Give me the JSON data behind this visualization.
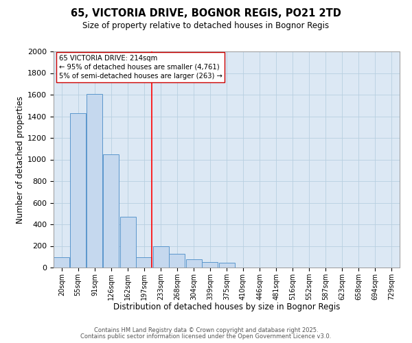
{
  "title": "65, VICTORIA DRIVE, BOGNOR REGIS, PO21 2TD",
  "subtitle": "Size of property relative to detached houses in Bognor Regis",
  "xlabel": "Distribution of detached houses by size in Bognor Regis",
  "ylabel": "Number of detached properties",
  "bar_color": "#c5d8ee",
  "bar_edge_color": "#5a96cc",
  "background_color": "#dce8f4",
  "grid_color": "#b8cfe0",
  "categories": [
    "20sqm",
    "55sqm",
    "91sqm",
    "126sqm",
    "162sqm",
    "197sqm",
    "233sqm",
    "268sqm",
    "304sqm",
    "339sqm",
    "375sqm",
    "410sqm",
    "446sqm",
    "481sqm",
    "516sqm",
    "552sqm",
    "587sqm",
    "623sqm",
    "658sqm",
    "694sqm",
    "729sqm"
  ],
  "bin_centers": [
    20,
    55,
    91,
    126,
    162,
    197,
    233,
    268,
    304,
    339,
    375,
    410,
    446,
    481,
    516,
    552,
    587,
    623,
    658,
    694,
    729
  ],
  "bin_width": 35,
  "values": [
    95,
    1430,
    1605,
    1050,
    470,
    95,
    195,
    125,
    75,
    50,
    45,
    0,
    0,
    0,
    0,
    0,
    0,
    0,
    0,
    0,
    0
  ],
  "ylim": [
    0,
    2000
  ],
  "yticks": [
    0,
    200,
    400,
    600,
    800,
    1000,
    1200,
    1400,
    1600,
    1800,
    2000
  ],
  "red_line_x": 214,
  "annotation_text": "65 VICTORIA DRIVE: 214sqm\n← 95% of detached houses are smaller (4,761)\n5% of semi-detached houses are larger (263) →",
  "footer_line1": "Contains HM Land Registry data © Crown copyright and database right 2025.",
  "footer_line2": "Contains public sector information licensed under the Open Government Licence v3.0."
}
